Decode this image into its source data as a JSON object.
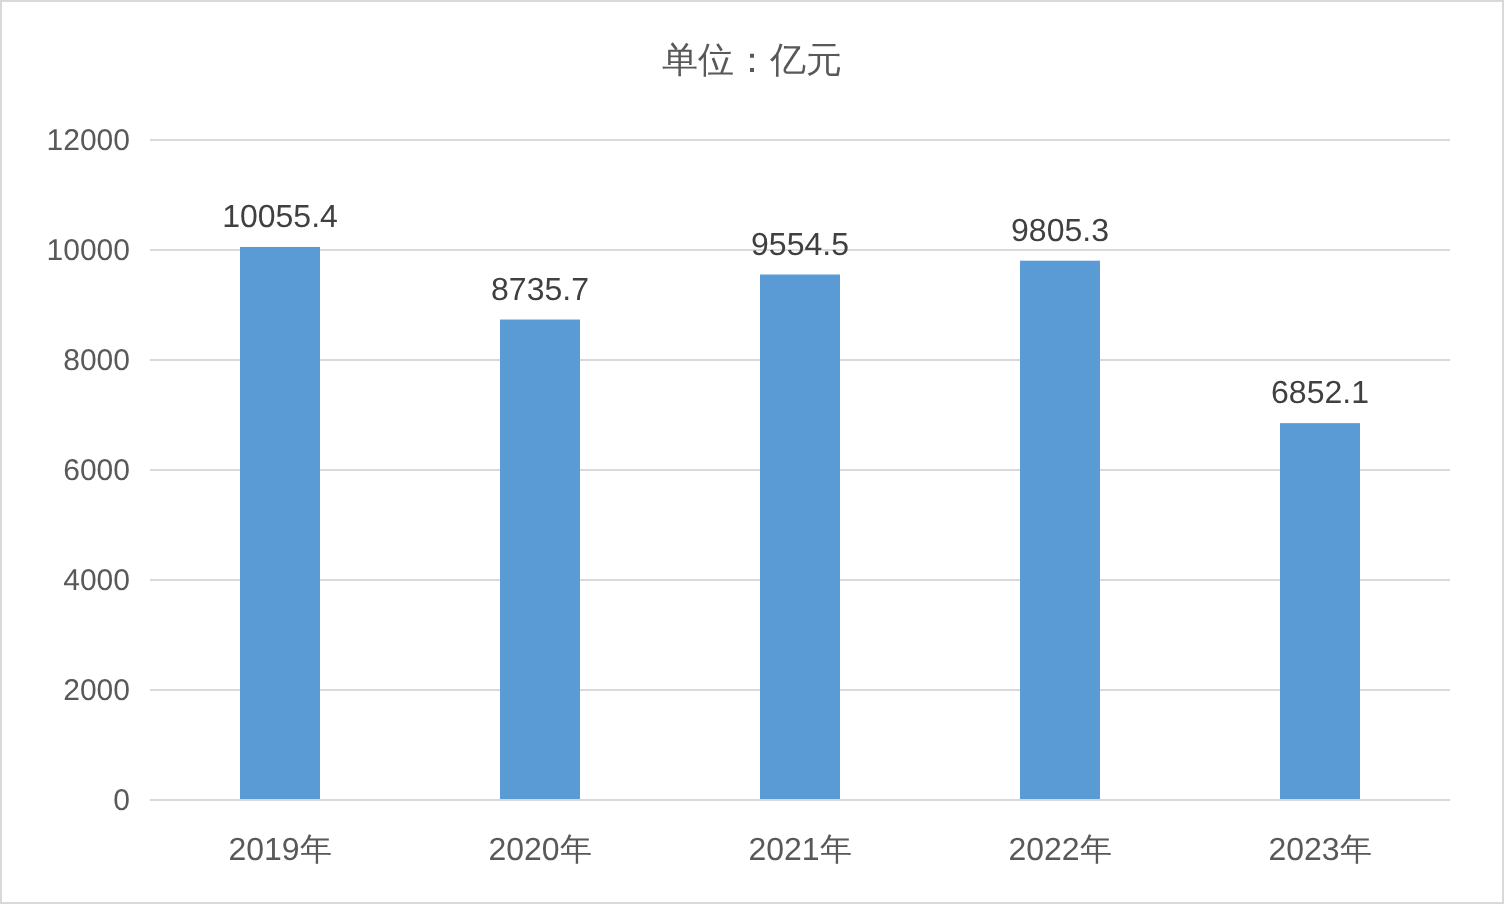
{
  "chart_data": {
    "type": "bar",
    "title": "单位：亿元",
    "categories": [
      "2019年",
      "2020年",
      "2021年",
      "2022年",
      "2023年"
    ],
    "values": [
      10055.4,
      8735.7,
      9554.5,
      9805.3,
      6852.1
    ],
    "color": "#5b9bd5",
    "ylim": [
      0,
      12000
    ],
    "yticks": [
      0,
      2000,
      4000,
      6000,
      8000,
      10000,
      12000
    ],
    "grid": "y",
    "data_labels": true
  }
}
